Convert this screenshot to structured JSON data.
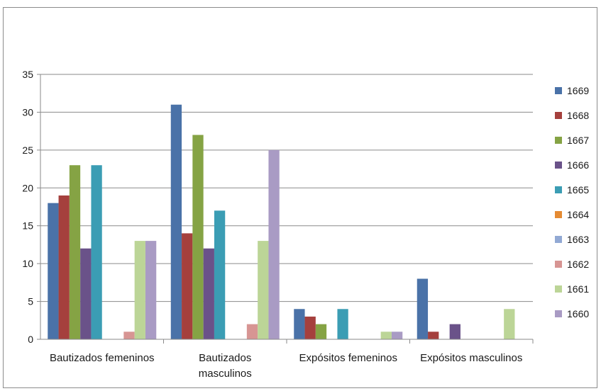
{
  "chart_data": {
    "type": "bar",
    "categories": [
      "Bautizados femeninos",
      "Bautizados\nmasculinos",
      "Expósitos femeninos",
      "Expósitos masculinos"
    ],
    "series": [
      {
        "name": "1669",
        "color": "#4a72a8",
        "values": [
          18,
          31,
          4,
          8
        ]
      },
      {
        "name": "1668",
        "color": "#a5403d",
        "values": [
          19,
          14,
          3,
          1
        ]
      },
      {
        "name": "1667",
        "color": "#85a344",
        "values": [
          23,
          27,
          2,
          0
        ]
      },
      {
        "name": "1666",
        "color": "#6a5289",
        "values": [
          12,
          12,
          0,
          2
        ]
      },
      {
        "name": "1665",
        "color": "#3b9db4",
        "values": [
          23,
          17,
          4,
          0
        ]
      },
      {
        "name": "1664",
        "color": "#e58b33",
        "values": [
          0,
          0,
          0,
          0
        ]
      },
      {
        "name": "1663",
        "color": "#92a9d4",
        "values": [
          0,
          0,
          0,
          0
        ]
      },
      {
        "name": "1662",
        "color": "#d79593",
        "values": [
          1,
          2,
          0,
          0
        ]
      },
      {
        "name": "1661",
        "color": "#bcd597",
        "values": [
          13,
          13,
          1,
          4
        ]
      },
      {
        "name": "1660",
        "color": "#a99bc4",
        "values": [
          13,
          25,
          1,
          0
        ]
      }
    ],
    "ylim": [
      0,
      35
    ],
    "yticks": [
      0,
      5,
      10,
      15,
      20,
      25,
      30,
      35
    ],
    "grid": true,
    "legend": "right"
  }
}
